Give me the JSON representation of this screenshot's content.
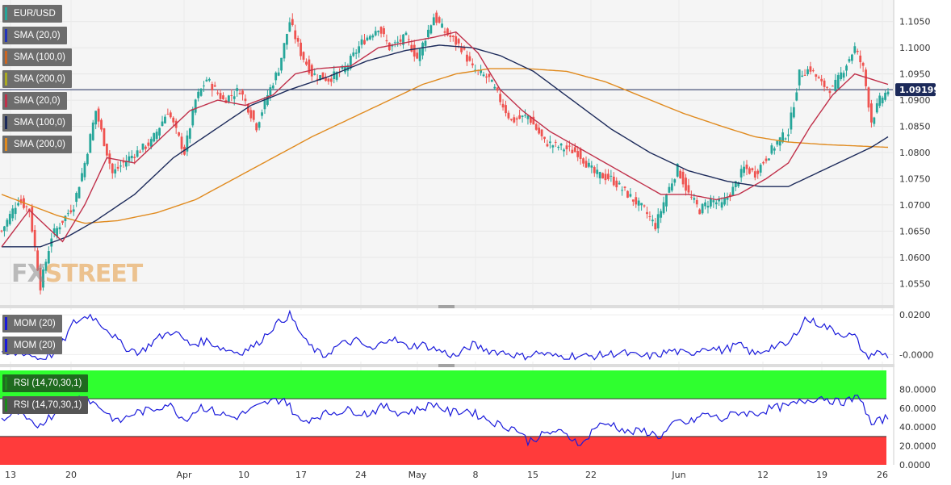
{
  "symbol": "EUR/USD",
  "price_legends": [
    {
      "label": "SMA (20,0)",
      "color": "#2233bb"
    },
    {
      "label": "SMA (100,0)",
      "color": "#cc6622"
    },
    {
      "label": "SMA (200,0)",
      "color": "#aaaa22"
    },
    {
      "label": "SMA (20,0)",
      "color": "#c0304a"
    },
    {
      "label": "SMA (100,0)",
      "color": "#1c2a5a"
    },
    {
      "label": "SMA (200,0)",
      "color": "#e08a1e"
    }
  ],
  "mom_legends": [
    "MOM (20)",
    "MOM (20)"
  ],
  "rsi_legends": [
    "RSI (14,70,30,1)",
    "RSI (14,70,30,1)"
  ],
  "current_price": "1.09199",
  "watermark": {
    "fx": "FX",
    "street": "STREET"
  },
  "colors": {
    "up": "#26a69a",
    "down": "#ef5350",
    "sma20": "#c0304a",
    "sma100": "#1c2a5a",
    "sma200": "#e08a1e",
    "mom": "#1a1adb",
    "rsi": "#1a1adb",
    "overbought": "#2fff2f",
    "oversold": "#ff3b3b"
  },
  "chart_data": [
    {
      "type": "candlestick",
      "title": "EUR/USD",
      "y_ticks": [
        "1.1050",
        "1.1000",
        "1.0950",
        "1.0900",
        "1.0850",
        "1.0800",
        "1.0750",
        "1.0700",
        "1.0650",
        "1.0600",
        "1.0550"
      ],
      "ylim": [
        1.0515,
        1.1085
      ],
      "x_ticks": [
        "13",
        "20",
        "Apr",
        "10",
        "17",
        "24",
        "May",
        "8",
        "15",
        "22",
        "Jun",
        "12",
        "19",
        "26"
      ],
      "horizontal_line": 1.092,
      "close_waypoints": [
        [
          0,
          1.065
        ],
        [
          6,
          1.071
        ],
        [
          10,
          1.069
        ],
        [
          14,
          1.0545
        ],
        [
          18,
          1.064
        ],
        [
          26,
          1.07
        ],
        [
          30,
          1.078
        ],
        [
          34,
          1.088
        ],
        [
          40,
          1.076
        ],
        [
          46,
          1.079
        ],
        [
          54,
          1.082
        ],
        [
          60,
          1.088
        ],
        [
          66,
          1.08
        ],
        [
          70,
          1.09
        ],
        [
          74,
          1.094
        ],
        [
          80,
          1.09
        ],
        [
          86,
          1.092
        ],
        [
          92,
          1.085
        ],
        [
          96,
          1.091
        ],
        [
          100,
          1.096
        ],
        [
          104,
          1.105
        ],
        [
          108,
          1.099
        ],
        [
          112,
          1.095
        ],
        [
          118,
          1.094
        ],
        [
          124,
          1.096
        ],
        [
          130,
          1.101
        ],
        [
          136,
          1.104
        ],
        [
          140,
          1.1
        ],
        [
          146,
          1.102
        ],
        [
          150,
          1.098
        ],
        [
          156,
          1.106
        ],
        [
          160,
          1.103
        ],
        [
          166,
          1.1
        ],
        [
          170,
          1.096
        ],
        [
          176,
          1.094
        ],
        [
          180,
          1.09
        ],
        [
          184,
          1.086
        ],
        [
          190,
          1.087
        ],
        [
          196,
          1.082
        ],
        [
          202,
          1.081
        ],
        [
          208,
          1.08
        ],
        [
          214,
          1.076
        ],
        [
          220,
          1.075
        ],
        [
          226,
          1.072
        ],
        [
          232,
          1.069
        ],
        [
          236,
          1.066
        ],
        [
          240,
          1.072
        ],
        [
          244,
          1.077
        ],
        [
          248,
          1.072
        ],
        [
          252,
          1.069
        ],
        [
          256,
          1.071
        ],
        [
          260,
          1.07
        ],
        [
          264,
          1.073
        ],
        [
          268,
          1.077
        ],
        [
          272,
          1.076
        ],
        [
          276,
          1.079
        ],
        [
          280,
          1.082
        ],
        [
          284,
          1.084
        ],
        [
          288,
          1.095
        ],
        [
          292,
          1.096
        ],
        [
          296,
          1.093
        ],
        [
          300,
          1.092
        ],
        [
          304,
          1.096
        ],
        [
          308,
          1.1
        ],
        [
          311,
          1.096
        ],
        [
          314,
          1.086
        ],
        [
          317,
          1.09
        ],
        [
          320,
          1.0919
        ]
      ],
      "sma20_waypoints": [
        [
          0,
          1.062
        ],
        [
          10,
          1.069
        ],
        [
          16,
          1.066
        ],
        [
          22,
          1.063
        ],
        [
          30,
          1.07
        ],
        [
          38,
          1.079
        ],
        [
          48,
          1.078
        ],
        [
          58,
          1.083
        ],
        [
          68,
          1.088
        ],
        [
          78,
          1.09
        ],
        [
          88,
          1.089
        ],
        [
          98,
          1.091
        ],
        [
          106,
          1.095
        ],
        [
          114,
          1.096
        ],
        [
          126,
          1.0965
        ],
        [
          136,
          1.1
        ],
        [
          146,
          1.101
        ],
        [
          156,
          1.102
        ],
        [
          164,
          1.103
        ],
        [
          172,
          1.099
        ],
        [
          180,
          1.092
        ],
        [
          188,
          1.088
        ],
        [
          198,
          1.084
        ],
        [
          208,
          1.081
        ],
        [
          218,
          1.078
        ],
        [
          228,
          1.075
        ],
        [
          238,
          1.072
        ],
        [
          248,
          1.072
        ],
        [
          258,
          1.071
        ],
        [
          266,
          1.072
        ],
        [
          276,
          1.075
        ],
        [
          284,
          1.078
        ],
        [
          292,
          1.085
        ],
        [
          300,
          1.091
        ],
        [
          308,
          1.095
        ],
        [
          314,
          1.094
        ],
        [
          320,
          1.093
        ]
      ],
      "sma100_waypoints": [
        [
          0,
          1.062
        ],
        [
          14,
          1.062
        ],
        [
          24,
          1.064
        ],
        [
          34,
          1.067
        ],
        [
          48,
          1.072
        ],
        [
          62,
          1.079
        ],
        [
          76,
          1.084
        ],
        [
          90,
          1.089
        ],
        [
          104,
          1.092
        ],
        [
          118,
          1.0945
        ],
        [
          132,
          1.0975
        ],
        [
          146,
          1.0995
        ],
        [
          158,
          1.1005
        ],
        [
          170,
          1.1
        ],
        [
          180,
          1.0985
        ],
        [
          192,
          1.0955
        ],
        [
          206,
          1.09
        ],
        [
          220,
          1.0845
        ],
        [
          234,
          1.08
        ],
        [
          248,
          1.0765
        ],
        [
          262,
          1.0745
        ],
        [
          274,
          1.0735
        ],
        [
          284,
          1.0735
        ],
        [
          294,
          1.076
        ],
        [
          306,
          1.079
        ],
        [
          314,
          1.081
        ],
        [
          320,
          1.083
        ]
      ],
      "sma200_waypoints": [
        [
          0,
          1.072
        ],
        [
          10,
          1.07
        ],
        [
          20,
          1.068
        ],
        [
          30,
          1.0665
        ],
        [
          42,
          1.067
        ],
        [
          56,
          1.0685
        ],
        [
          70,
          1.071
        ],
        [
          84,
          1.075
        ],
        [
          98,
          1.079
        ],
        [
          112,
          1.083
        ],
        [
          126,
          1.0865
        ],
        [
          140,
          1.09
        ],
        [
          152,
          1.093
        ],
        [
          164,
          1.095
        ],
        [
          176,
          1.096
        ],
        [
          190,
          1.096
        ],
        [
          204,
          1.0955
        ],
        [
          218,
          1.0935
        ],
        [
          232,
          1.0905
        ],
        [
          246,
          1.0875
        ],
        [
          260,
          1.085
        ],
        [
          272,
          1.083
        ],
        [
          284,
          1.082
        ],
        [
          298,
          1.0815
        ],
        [
          320,
          1.081
        ]
      ]
    },
    {
      "type": "line",
      "title": "MOM (20)",
      "y_ticks": [
        "0.0200",
        "-0.0000"
      ],
      "ylim": [
        -0.0035,
        0.0225
      ],
      "waypoints": [
        [
          0,
          -0.0005
        ],
        [
          8,
          0.001
        ],
        [
          14,
          -0.002
        ],
        [
          20,
          0.001
        ],
        [
          26,
          0.016
        ],
        [
          32,
          0.02
        ],
        [
          38,
          0.013
        ],
        [
          44,
          0.004
        ],
        [
          50,
          0.001
        ],
        [
          56,
          0.008
        ],
        [
          62,
          0.012
        ],
        [
          68,
          0.005
        ],
        [
          74,
          0.007
        ],
        [
          80,
          0.003
        ],
        [
          86,
          0.001
        ],
        [
          92,
          0.005
        ],
        [
          98,
          0.014
        ],
        [
          104,
          0.02
        ],
        [
          110,
          0.006
        ],
        [
          116,
          -0.001
        ],
        [
          122,
          0.005
        ],
        [
          128,
          0.007
        ],
        [
          134,
          0.002
        ],
        [
          140,
          0.009
        ],
        [
          146,
          0.004
        ],
        [
          152,
          0.005
        ],
        [
          158,
          0.002
        ],
        [
          164,
          -0.001
        ],
        [
          170,
          0.005
        ],
        [
          176,
          0.002
        ],
        [
          182,
          0.001
        ],
        [
          188,
          -0.001
        ],
        [
          194,
          0.001
        ],
        [
          200,
          -0.001
        ],
        [
          206,
          -0.0005
        ],
        [
          212,
          -0.001
        ],
        [
          218,
          0.0
        ],
        [
          224,
          0.001
        ],
        [
          230,
          -0.001
        ],
        [
          236,
          -0.0005
        ],
        [
          242,
          0.002
        ],
        [
          248,
          0.0
        ],
        [
          254,
          0.004
        ],
        [
          260,
          0.002
        ],
        [
          266,
          0.005
        ],
        [
          272,
          0.0
        ],
        [
          278,
          0.004
        ],
        [
          284,
          0.005
        ],
        [
          290,
          0.018
        ],
        [
          296,
          0.015
        ],
        [
          302,
          0.011
        ],
        [
          308,
          0.009
        ],
        [
          312,
          -0.001
        ],
        [
          316,
          0.001
        ],
        [
          320,
          -0.0005
        ]
      ]
    },
    {
      "type": "line",
      "title": "RSI (14,70,30,1)",
      "y_ticks": [
        "80.0000",
        "60.0000",
        "40.0000",
        "20.0000",
        "0.0000"
      ],
      "ylim": [
        0,
        100
      ],
      "overbought": 70,
      "oversold": 30,
      "waypoints": [
        [
          0,
          48
        ],
        [
          6,
          55
        ],
        [
          12,
          40
        ],
        [
          18,
          52
        ],
        [
          24,
          68
        ],
        [
          30,
          72
        ],
        [
          36,
          60
        ],
        [
          42,
          45
        ],
        [
          48,
          55
        ],
        [
          54,
          58
        ],
        [
          60,
          65
        ],
        [
          66,
          48
        ],
        [
          72,
          62
        ],
        [
          78,
          55
        ],
        [
          84,
          50
        ],
        [
          90,
          58
        ],
        [
          96,
          66
        ],
        [
          102,
          70
        ],
        [
          108,
          45
        ],
        [
          114,
          52
        ],
        [
          120,
          56
        ],
        [
          126,
          58
        ],
        [
          132,
          54
        ],
        [
          138,
          62
        ],
        [
          144,
          55
        ],
        [
          150,
          58
        ],
        [
          156,
          65
        ],
        [
          162,
          55
        ],
        [
          168,
          58
        ],
        [
          174,
          50
        ],
        [
          180,
          42
        ],
        [
          186,
          38
        ],
        [
          190,
          25
        ],
        [
          194,
          30
        ],
        [
          200,
          36
        ],
        [
          206,
          28
        ],
        [
          210,
          22
        ],
        [
          214,
          40
        ],
        [
          220,
          44
        ],
        [
          226,
          34
        ],
        [
          232,
          36
        ],
        [
          238,
          30
        ],
        [
          244,
          46
        ],
        [
          248,
          44
        ],
        [
          254,
          54
        ],
        [
          260,
          48
        ],
        [
          266,
          56
        ],
        [
          272,
          54
        ],
        [
          278,
          60
        ],
        [
          284,
          62
        ],
        [
          290,
          68
        ],
        [
          296,
          72
        ],
        [
          302,
          66
        ],
        [
          306,
          68
        ],
        [
          310,
          72
        ],
        [
          314,
          42
        ],
        [
          318,
          48
        ],
        [
          320,
          50
        ]
      ]
    }
  ]
}
